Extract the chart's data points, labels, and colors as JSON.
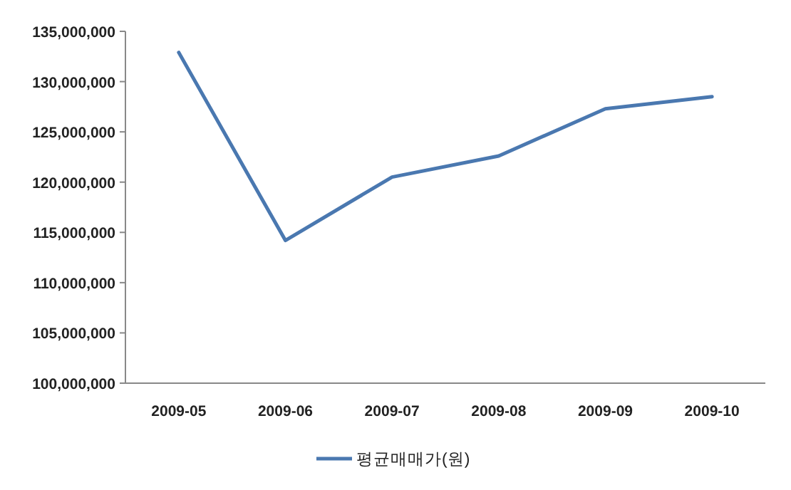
{
  "chart_data": {
    "type": "line",
    "categories": [
      "2009-05",
      "2009-06",
      "2009-07",
      "2009-08",
      "2009-09",
      "2009-10"
    ],
    "series": [
      {
        "name": "평균매매가(원)",
        "color": "#4a78b0",
        "values": [
          132900000,
          114200000,
          120500000,
          122600000,
          127300000,
          128500000
        ]
      }
    ],
    "ylim": [
      100000000,
      135000000
    ],
    "yticks": [
      {
        "value": 100000000,
        "label": "100,000,000"
      },
      {
        "value": 105000000,
        "label": "105,000,000"
      },
      {
        "value": 110000000,
        "label": "110,000,000"
      },
      {
        "value": 115000000,
        "label": "115,000,000"
      },
      {
        "value": 120000000,
        "label": "120,000,000"
      },
      {
        "value": 125000000,
        "label": "125,000,000"
      },
      {
        "value": 130000000,
        "label": "130,000,000"
      },
      {
        "value": 135000000,
        "label": "135,000,000"
      }
    ],
    "grid": false,
    "legend": "bottom",
    "marker": "none",
    "line_style": "solid"
  }
}
